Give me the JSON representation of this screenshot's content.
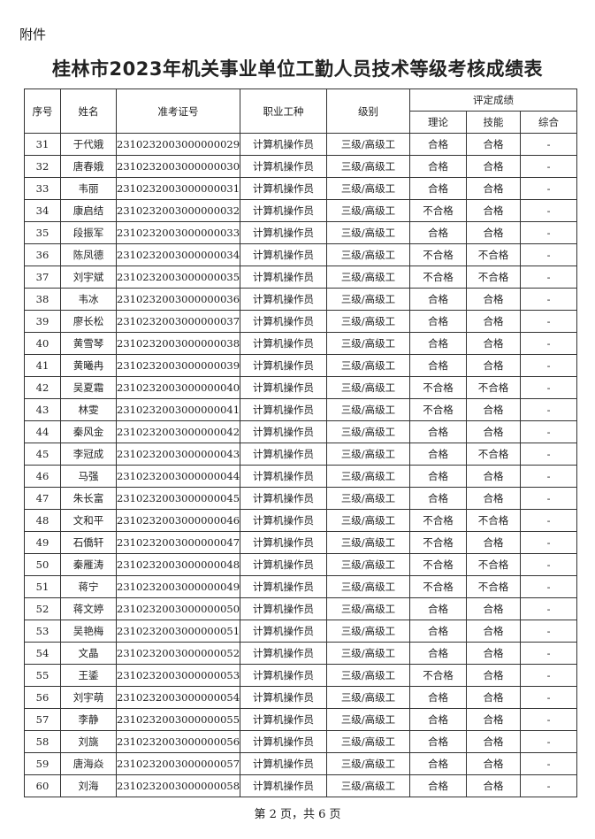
{
  "attachment_label": "附件",
  "title": "桂林市2023年机关事业单位工勤人员技术等级考核成绩表",
  "headers": {
    "seq": "序号",
    "name": "姓名",
    "exam_id": "准考证号",
    "job": "职业工种",
    "level": "级别",
    "score_group": "评定成绩",
    "theory": "理论",
    "skill": "技能",
    "overall": "综合"
  },
  "rows": [
    [
      "31",
      "于代娥",
      "2310232003000000029",
      "计算机操作员",
      "三级/高级工",
      "合格",
      "合格",
      "-"
    ],
    [
      "32",
      "唐春娥",
      "2310232003000000030",
      "计算机操作员",
      "三级/高级工",
      "合格",
      "合格",
      "-"
    ],
    [
      "33",
      "韦丽",
      "2310232003000000031",
      "计算机操作员",
      "三级/高级工",
      "合格",
      "合格",
      "-"
    ],
    [
      "34",
      "康启结",
      "2310232003000000032",
      "计算机操作员",
      "三级/高级工",
      "不合格",
      "合格",
      "-"
    ],
    [
      "35",
      "段振军",
      "2310232003000000033",
      "计算机操作员",
      "三级/高级工",
      "合格",
      "合格",
      "-"
    ],
    [
      "36",
      "陈凤德",
      "2310232003000000034",
      "计算机操作员",
      "三级/高级工",
      "不合格",
      "不合格",
      "-"
    ],
    [
      "37",
      "刘宇斌",
      "2310232003000000035",
      "计算机操作员",
      "三级/高级工",
      "不合格",
      "不合格",
      "-"
    ],
    [
      "38",
      "韦冰",
      "2310232003000000036",
      "计算机操作员",
      "三级/高级工",
      "合格",
      "合格",
      "-"
    ],
    [
      "39",
      "廖长松",
      "2310232003000000037",
      "计算机操作员",
      "三级/高级工",
      "合格",
      "合格",
      "-"
    ],
    [
      "40",
      "黄雪琴",
      "2310232003000000038",
      "计算机操作员",
      "三级/高级工",
      "合格",
      "合格",
      "-"
    ],
    [
      "41",
      "黄曦冉",
      "2310232003000000039",
      "计算机操作员",
      "三级/高级工",
      "合格",
      "合格",
      "-"
    ],
    [
      "42",
      "吴夏霜",
      "2310232003000000040",
      "计算机操作员",
      "三级/高级工",
      "不合格",
      "不合格",
      "-"
    ],
    [
      "43",
      "林雯",
      "2310232003000000041",
      "计算机操作员",
      "三级/高级工",
      "不合格",
      "合格",
      "-"
    ],
    [
      "44",
      "秦风金",
      "2310232003000000042",
      "计算机操作员",
      "三级/高级工",
      "合格",
      "合格",
      "-"
    ],
    [
      "45",
      "李冠成",
      "2310232003000000043",
      "计算机操作员",
      "三级/高级工",
      "合格",
      "不合格",
      "-"
    ],
    [
      "46",
      "马强",
      "2310232003000000044",
      "计算机操作员",
      "三级/高级工",
      "合格",
      "合格",
      "-"
    ],
    [
      "47",
      "朱长富",
      "2310232003000000045",
      "计算机操作员",
      "三级/高级工",
      "合格",
      "合格",
      "-"
    ],
    [
      "48",
      "文和平",
      "2310232003000000046",
      "计算机操作员",
      "三级/高级工",
      "不合格",
      "不合格",
      "-"
    ],
    [
      "49",
      "石僑轩",
      "2310232003000000047",
      "计算机操作员",
      "三级/高级工",
      "不合格",
      "合格",
      "-"
    ],
    [
      "50",
      "秦雁涛",
      "2310232003000000048",
      "计算机操作员",
      "三级/高级工",
      "不合格",
      "不合格",
      "-"
    ],
    [
      "51",
      "蒋宁",
      "2310232003000000049",
      "计算机操作员",
      "三级/高级工",
      "不合格",
      "不合格",
      "-"
    ],
    [
      "52",
      "蒋文婷",
      "2310232003000000050",
      "计算机操作员",
      "三级/高级工",
      "合格",
      "合格",
      "-"
    ],
    [
      "53",
      "吴艳梅",
      "2310232003000000051",
      "计算机操作员",
      "三级/高级工",
      "合格",
      "合格",
      "-"
    ],
    [
      "54",
      "文晶",
      "2310232003000000052",
      "计算机操作员",
      "三级/高级工",
      "合格",
      "合格",
      "-"
    ],
    [
      "55",
      "王鋈",
      "2310232003000000053",
      "计算机操作员",
      "三级/高级工",
      "不合格",
      "合格",
      "-"
    ],
    [
      "56",
      "刘宇萌",
      "2310232003000000054",
      "计算机操作员",
      "三级/高级工",
      "合格",
      "合格",
      "-"
    ],
    [
      "57",
      "李静",
      "2310232003000000055",
      "计算机操作员",
      "三级/高级工",
      "合格",
      "合格",
      "-"
    ],
    [
      "58",
      "刘旐",
      "2310232003000000056",
      "计算机操作员",
      "三级/高级工",
      "合格",
      "合格",
      "-"
    ],
    [
      "59",
      "唐海焱",
      "2310232003000000057",
      "计算机操作员",
      "三级/高级工",
      "合格",
      "合格",
      "-"
    ],
    [
      "60",
      "刘海",
      "2310232003000000058",
      "计算机操作员",
      "三级/高级工",
      "合格",
      "合格",
      "-"
    ]
  ],
  "footer": "第 2 页，共 6 页"
}
